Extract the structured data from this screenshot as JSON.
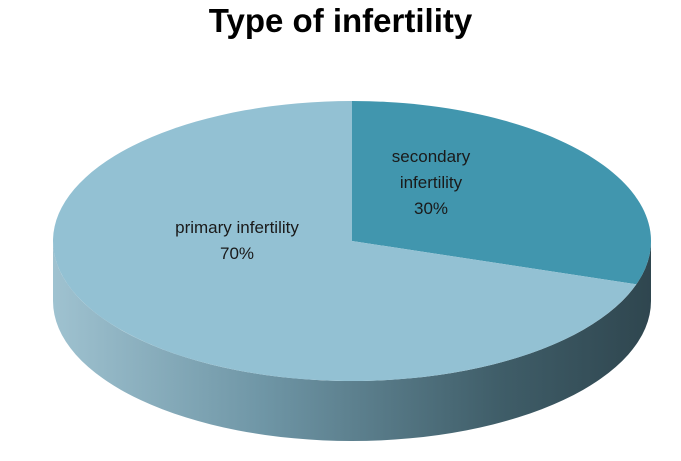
{
  "chart_data": {
    "type": "pie",
    "title": "Type of infertility",
    "slices": [
      {
        "label": "secondary infertility",
        "value": 30,
        "percent_label": "30%",
        "label_lines": [
          "secondary",
          "infertility",
          "30%"
        ],
        "color": "#4196ae"
      },
      {
        "label": "primary infertility",
        "value": 70,
        "percent_label": "70%",
        "label_lines": [
          "primary infertility",
          "70%"
        ],
        "color": "#93c1d3"
      }
    ],
    "style": "3d",
    "legend": "none"
  }
}
